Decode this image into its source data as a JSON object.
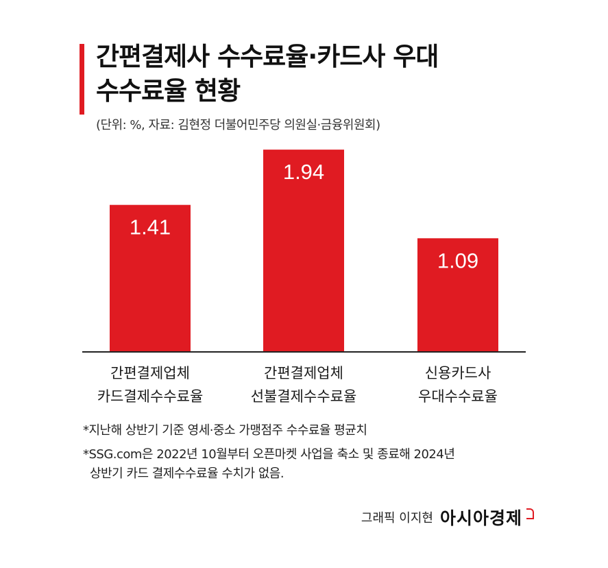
{
  "title_lines": [
    "간편결제사 수수료율·카드사 우대",
    "수수료율 현황"
  ],
  "subtitle": "(단위: %, 자료: 김현정 더불어민주당 의원실·금융위원회)",
  "footnotes": [
    "*지난해 상반기 기준 영세·중소 가맹점주 수수료율 평균치",
    "*SSG.com은 2022년 10월부터 오픈마켓 사업을 축소 및 종료해 2024년",
    "상반기 카드 결제수수료율 수치가 없음."
  ],
  "credit": "그래픽 이지현",
  "brand": "아시아경제",
  "colors": {
    "bar": "#e01b22",
    "axis": "#222222"
  },
  "chart_data": {
    "type": "bar",
    "categories": [
      [
        "간편결제업체",
        "카드결제수수료율"
      ],
      [
        "간편결제업체",
        "선불결제수수료율"
      ],
      [
        "신용카드사",
        "우대수수료율"
      ]
    ],
    "values": [
      1.41,
      1.94,
      1.09
    ],
    "data_labels": [
      "1.41",
      "1.94",
      "1.09"
    ],
    "ylim": [
      0,
      2.0
    ],
    "grid": false,
    "legend": "none",
    "title": "간편결제사 수수료율·카드사 우대 수수료율 현황",
    "xlabel": "",
    "ylabel": ""
  }
}
